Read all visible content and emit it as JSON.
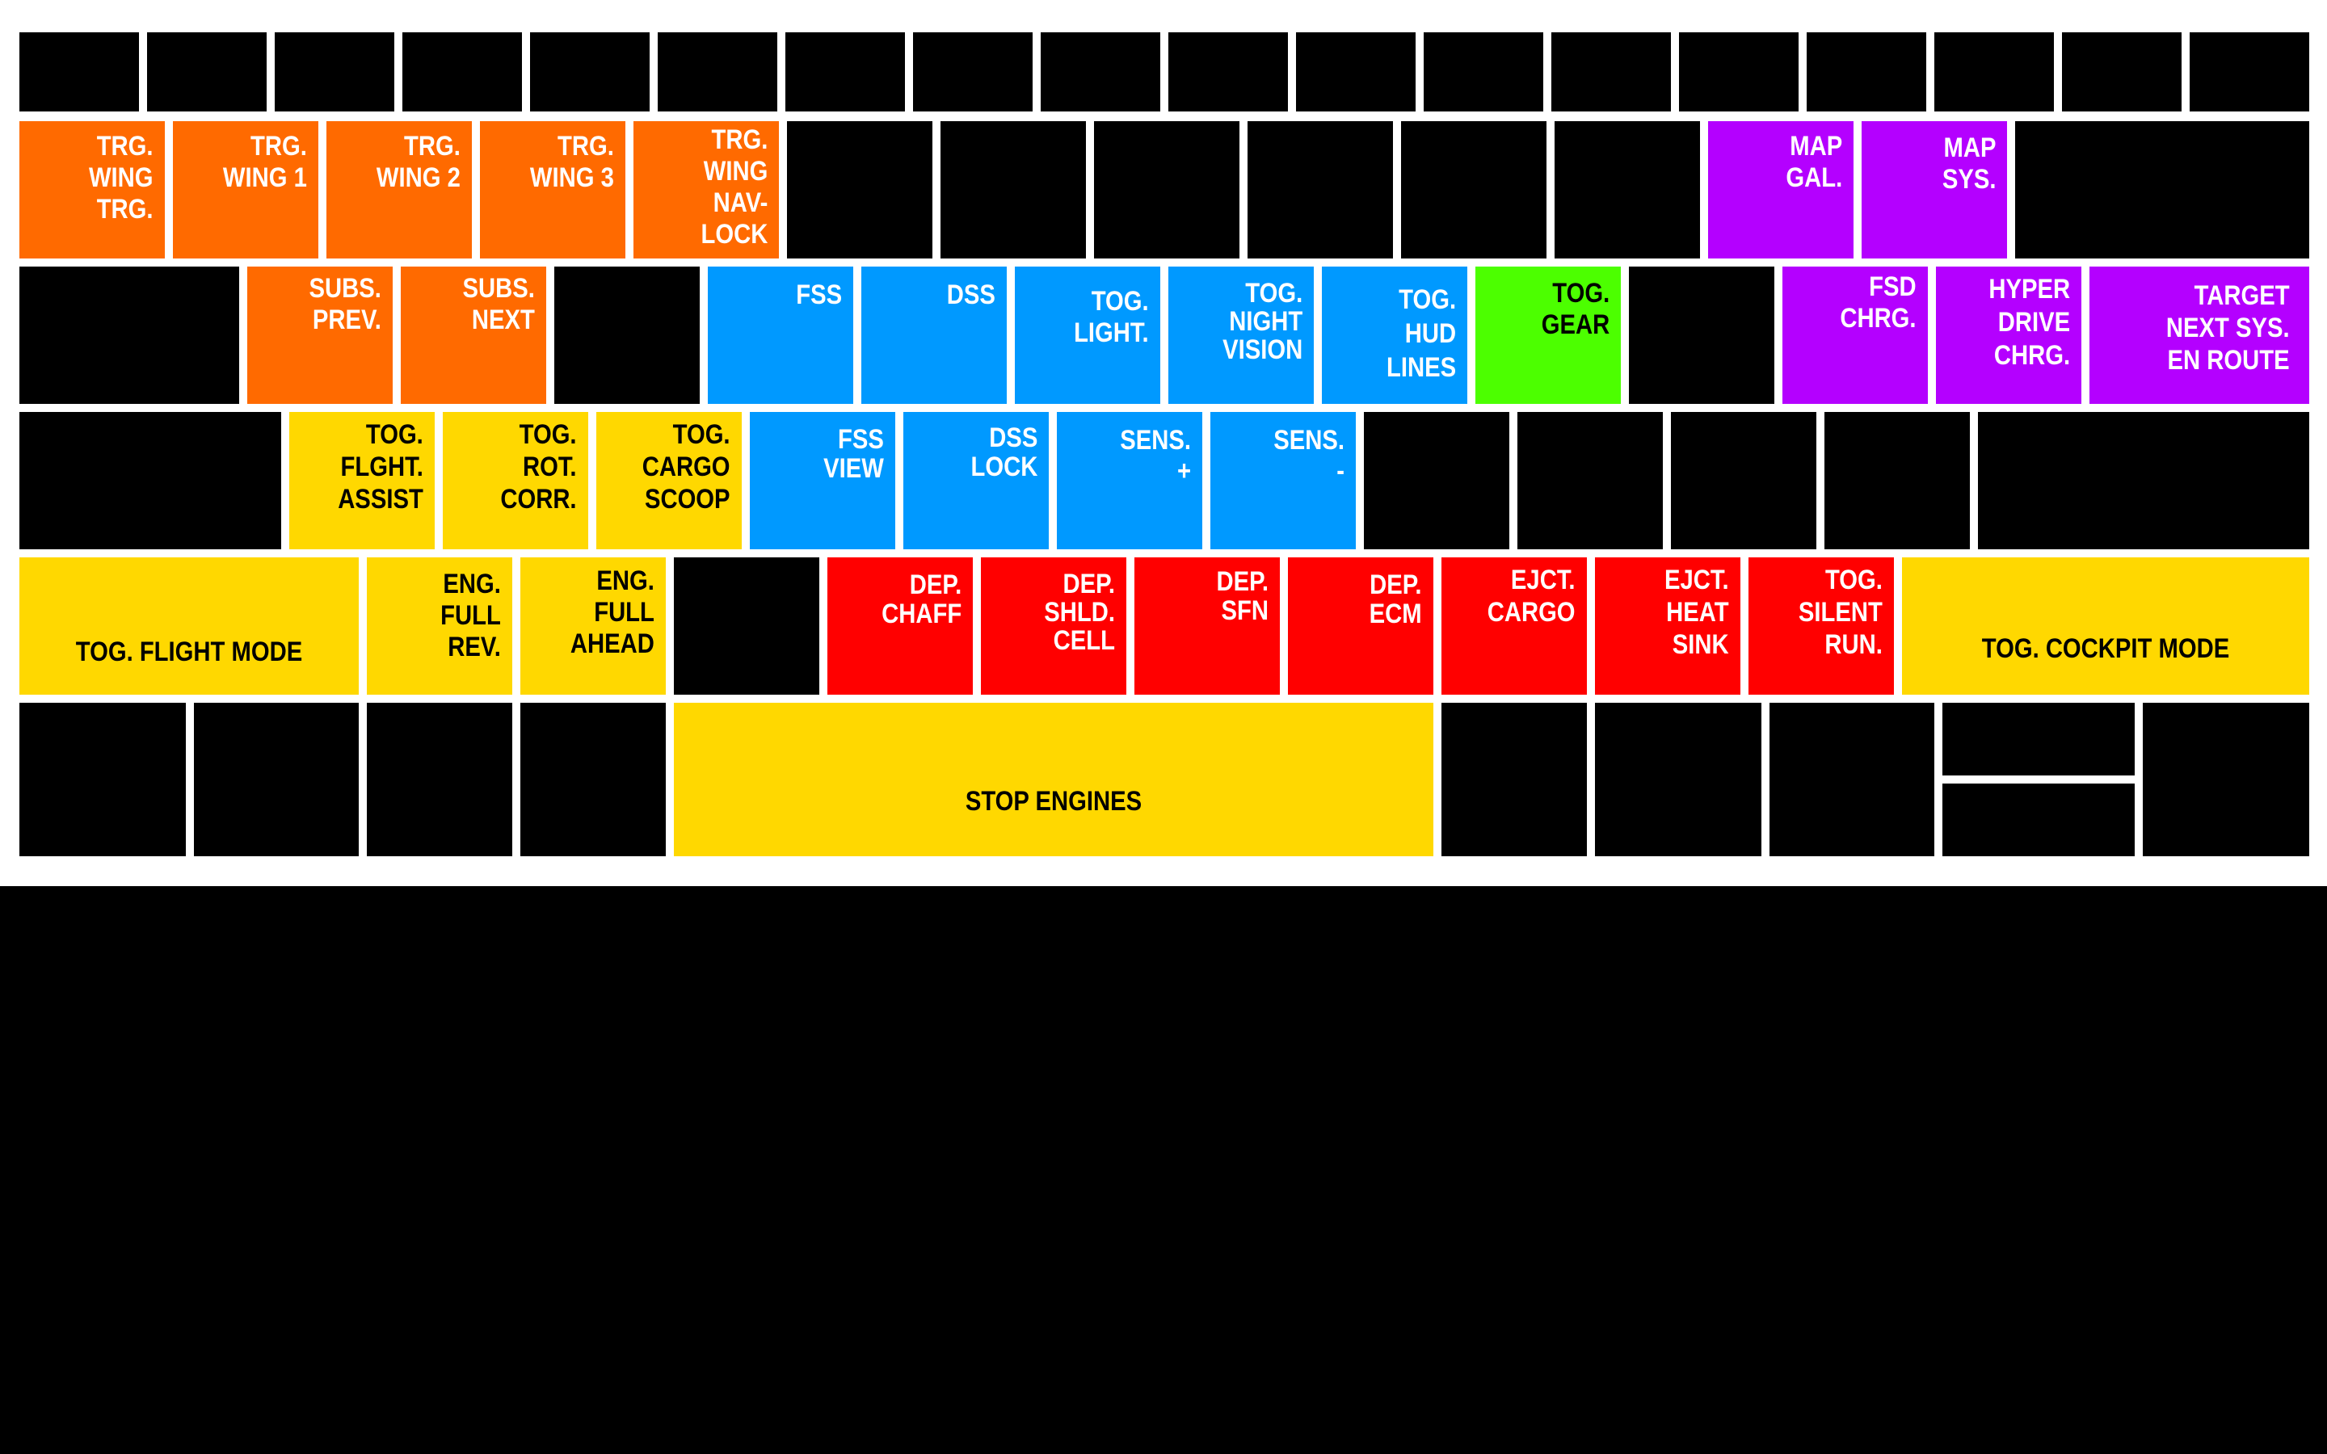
{
  "colors": {
    "orange": "#ff6a00",
    "blue": "#0099ff",
    "purple": "#b400ff",
    "green": "#4cff00",
    "yellow": "#ffd800",
    "red": "#ff0000",
    "blank": "#000000",
    "frame": "#ffffff"
  },
  "text_colors": {
    "orange": "#ffffff",
    "blue": "#ffffff",
    "purple": "#ffffff",
    "red": "#ffffff",
    "green": "#000000",
    "yellow": "#000000"
  },
  "keys": {
    "trg_wing_trg": "TRG.\nWING\nTRG.",
    "trg_wing_1": "TRG.\nWING 1",
    "trg_wing_2": "TRG.\nWING 2",
    "trg_wing_3": "TRG.\nWING 3",
    "trg_wing_nav_lock": "TRG.\nWING\nNAV-\nLOCK",
    "map_gal": "MAP\nGAL.",
    "map_sys": "MAP\nSYS.",
    "subs_prev": "SUBS.\nPREV.",
    "subs_next": "SUBS.\nNEXT",
    "fss": "FSS",
    "dss": "DSS",
    "tog_light": "TOG.\nLIGHT.",
    "tog_night_vision": "TOG.\nNIGHT\nVISION",
    "tog_hud_lines": "TOG.\nHUD\nLINES",
    "tog_gear": "TOG.\nGEAR",
    "fsd_chrg": "FSD\nCHRG.",
    "hyper_drive_chrg": "HYPER\nDRIVE\nCHRG.",
    "target_next_sys": "TARGET\nNEXT SYS.\nEN ROUTE",
    "tog_flght_assist": "TOG.\nFLGHT.\nASSIST",
    "tog_rot_corr": "TOG.\nROT.\nCORR.",
    "tog_cargo_scoop": "TOG.\nCARGO\nSCOOP",
    "fss_view": "FSS\nVIEW",
    "dss_lock": "DSS\nLOCK",
    "sens_plus": "SENS.\n+",
    "sens_minus": "SENS.\n-",
    "tog_flight_mode": "TOG. FLIGHT MODE",
    "eng_full_rev": "ENG.\nFULL\nREV.",
    "eng_full_ahead": "ENG.\nFULL\nAHEAD",
    "dep_chaff": "DEP.\nCHAFF",
    "dep_shld_cell": "DEP.\nSHLD.\nCELL",
    "dep_sfn": "DEP.\nSFN",
    "dep_ecm": "DEP.\nECM",
    "ejct_cargo": "EJCT.\nCARGO",
    "ejct_heat_sink": "EJCT.\nHEAT\nSINK",
    "tog_silent_run": "TOG.\nSILENT\nRUN.",
    "tog_cockpit_mode": "TOG. COCKPIT MODE",
    "stop_engines": "STOP ENGINES"
  }
}
